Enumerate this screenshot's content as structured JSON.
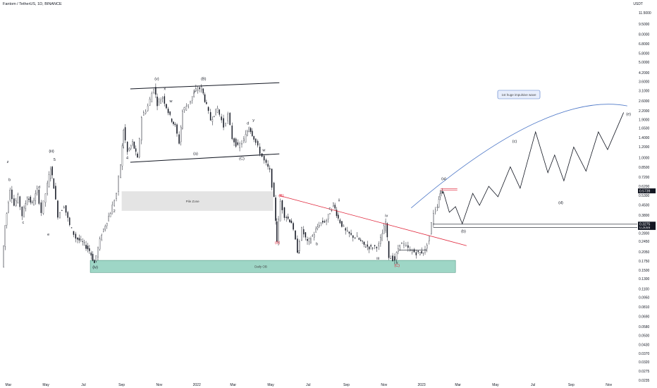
{
  "header": {
    "title": "Fantom / TetherUS, 1D, BINANCE",
    "currency": "USDT"
  },
  "colors": {
    "up": "#131722",
    "down": "#131722",
    "trend_red": "#e0263b",
    "zone_green": "#9ed6c6",
    "zone_grey": "#e4e4e4",
    "arc_blue": "#4f79c8"
  },
  "price_tags": {
    "current": "0.5739",
    "level1": "0.3099",
    "level2": "0.3275"
  },
  "annotation": {
    "text": "1st huge impulsive wave"
  },
  "zones": {
    "pile": "Pile Zone",
    "daily": "Daily OB"
  },
  "chart_data": {
    "type": "candlestick",
    "title": "Fantom / TetherUS, 1D, BINANCE",
    "y_scale": "log",
    "ylim": [
      0.022,
      13.0
    ],
    "y_ticks": [
      "11.5000",
      "9.5000",
      "8.0000",
      "6.8000",
      "5.8000",
      "5.0000",
      "4.2000",
      "3.6000",
      "3.1000",
      "2.6000",
      "2.2000",
      "1.9000",
      "1.6500",
      "1.4000",
      "1.2000",
      "1.0000",
      "0.8500",
      "0.7200",
      "0.6200",
      "0.5300",
      "0.4500",
      "0.3800",
      "0.3200",
      "0.2800",
      "0.2450",
      "0.2050",
      "0.1750",
      "0.1500",
      "0.1300",
      "0.1100",
      "0.0950",
      "0.0810",
      "0.0690",
      "0.0580",
      "0.0500",
      "0.0430",
      "0.0370",
      "0.0320",
      "0.0275",
      "0.0235"
    ],
    "x_ticks": [
      "Mar",
      "May",
      "Jul",
      "Sep",
      "Nov",
      "2022",
      "Mar",
      "May",
      "Jul",
      "Sep",
      "Nov",
      "2023",
      "Mar",
      "May",
      "Jul",
      "Sep",
      "Nov"
    ],
    "price_path": [
      [
        "2021-02-20",
        0.16
      ],
      [
        "2021-02-25",
        0.32
      ],
      [
        "2021-03-05",
        0.6
      ],
      [
        "2021-03-12",
        0.45
      ],
      [
        "2021-03-18",
        0.52
      ],
      [
        "2021-03-25",
        0.38
      ],
      [
        "2021-04-02",
        0.52
      ],
      [
        "2021-04-10",
        0.46
      ],
      [
        "2021-04-18",
        0.58
      ],
      [
        "2021-04-25",
        0.4
      ],
      [
        "2021-05-02",
        0.55
      ],
      [
        "2021-05-10",
        0.85
      ],
      [
        "2021-05-15",
        0.62
      ],
      [
        "2021-05-22",
        0.38
      ],
      [
        "2021-06-01",
        0.45
      ],
      [
        "2021-06-10",
        0.32
      ],
      [
        "2021-06-20",
        0.26
      ],
      [
        "2021-07-01",
        0.24
      ],
      [
        "2021-07-12",
        0.21
      ],
      [
        "2021-07-20",
        0.17
      ],
      [
        "2021-08-01",
        0.28
      ],
      [
        "2021-08-15",
        0.4
      ],
      [
        "2021-08-25",
        0.55
      ],
      [
        "2021-09-01",
        0.9
      ],
      [
        "2021-09-05",
        1.62
      ],
      [
        "2021-09-12",
        1.1
      ],
      [
        "2021-09-20",
        1.3
      ],
      [
        "2021-09-28",
        0.98
      ],
      [
        "2021-10-05",
        2.0
      ],
      [
        "2021-10-15",
        2.4
      ],
      [
        "2021-10-25",
        3.3
      ],
      [
        "2021-10-30",
        2.5
      ],
      [
        "2021-11-08",
        2.8
      ],
      [
        "2021-11-20",
        2.0
      ],
      [
        "2021-11-28",
        1.7
      ],
      [
        "2021-12-05",
        1.3
      ],
      [
        "2021-12-10",
        2.2
      ],
      [
        "2021-12-20",
        2.5
      ],
      [
        "2022-01-01",
        3.15
      ],
      [
        "2022-01-10",
        3.25
      ],
      [
        "2022-01-18",
        2.4
      ],
      [
        "2022-01-25",
        1.9
      ],
      [
        "2022-02-05",
        2.3
      ],
      [
        "2022-02-15",
        1.7
      ],
      [
        "2022-02-22",
        2.05
      ],
      [
        "2022-03-01",
        1.4
      ],
      [
        "2022-03-10",
        1.2
      ],
      [
        "2022-03-20",
        1.35
      ],
      [
        "2022-03-28",
        1.7
      ],
      [
        "2022-04-05",
        1.4
      ],
      [
        "2022-04-15",
        1.1
      ],
      [
        "2022-04-22",
        0.95
      ],
      [
        "2022-05-01",
        0.8
      ],
      [
        "2022-05-08",
        0.5
      ],
      [
        "2022-05-12",
        0.25
      ],
      [
        "2022-05-18",
        0.48
      ],
      [
        "2022-05-25",
        0.38
      ],
      [
        "2022-06-05",
        0.34
      ],
      [
        "2022-06-15",
        0.21
      ],
      [
        "2022-06-22",
        0.3
      ],
      [
        "2022-07-01",
        0.24
      ],
      [
        "2022-07-12",
        0.28
      ],
      [
        "2022-07-20",
        0.33
      ],
      [
        "2022-08-01",
        0.35
      ],
      [
        "2022-08-12",
        0.46
      ],
      [
        "2022-08-20",
        0.36
      ],
      [
        "2022-09-01",
        0.29
      ],
      [
        "2022-09-10",
        0.27
      ],
      [
        "2022-09-20",
        0.26
      ],
      [
        "2022-10-01",
        0.23
      ],
      [
        "2022-10-12",
        0.22
      ],
      [
        "2022-10-25",
        0.23
      ],
      [
        "2022-11-05",
        0.34
      ],
      [
        "2022-11-10",
        0.19
      ],
      [
        "2022-11-20",
        0.18
      ],
      [
        "2022-11-28",
        0.24
      ],
      [
        "2022-12-05",
        0.23
      ],
      [
        "2022-12-15",
        0.21
      ],
      [
        "2022-12-28",
        0.2
      ],
      [
        "2023-01-08",
        0.21
      ],
      [
        "2023-01-15",
        0.27
      ],
      [
        "2023-01-22",
        0.4
      ],
      [
        "2023-01-28",
        0.45
      ],
      [
        "2023-02-01",
        0.56
      ],
      [
        "2023-02-05",
        0.57
      ]
    ],
    "projection_path": [
      [
        "2023-02-05",
        0.57
      ],
      [
        "2023-02-15",
        0.4
      ],
      [
        "2023-02-25",
        0.44
      ],
      [
        "2023-03-08",
        0.33
      ],
      [
        "2023-03-25",
        0.55
      ],
      [
        "2023-04-05",
        0.45
      ],
      [
        "2023-04-20",
        0.62
      ],
      [
        "2023-05-05",
        0.52
      ],
      [
        "2023-05-25",
        0.86
      ],
      [
        "2023-06-10",
        0.6
      ],
      [
        "2023-07-05",
        1.55
      ],
      [
        "2023-07-25",
        0.78
      ],
      [
        "2023-08-05",
        1.05
      ],
      [
        "2023-08-20",
        0.68
      ],
      [
        "2023-09-05",
        1.2
      ],
      [
        "2023-09-25",
        0.8
      ],
      [
        "2023-10-15",
        1.55
      ],
      [
        "2023-10-30",
        1.15
      ],
      [
        "2023-11-25",
        2.15
      ]
    ],
    "wave_labels": [
      {
        "t": "z",
        "x": "2021-02-28",
        "y": 0.92
      },
      {
        "t": "b",
        "x": "2021-03-03",
        "y": 0.68
      },
      {
        "t": "d",
        "x": "2021-04-20",
        "y": 0.6
      },
      {
        "t": "c",
        "x": "2021-03-25",
        "y": 0.33
      },
      {
        "t": "e",
        "x": "2021-05-05",
        "y": 0.27
      },
      {
        "t": "(iii)",
        "x": "2021-05-10",
        "y": 1.1
      },
      {
        "t": "5",
        "x": "2021-05-15",
        "y": 0.95
      },
      {
        "t": "(iv)",
        "x": "2021-07-20",
        "y": 0.155
      },
      {
        "t": "(v)",
        "x": "2021-10-28",
        "y": 3.7
      },
      {
        "t": "x",
        "x": "2021-11-10",
        "y": 3.15
      },
      {
        "t": "w",
        "x": "2021-11-20",
        "y": 2.55
      },
      {
        "t": "y",
        "x": "2021-12-28",
        "y": 3.0
      },
      {
        "t": "(a)",
        "x": "2021-12-30",
        "y": 1.05
      },
      {
        "t": "(B)",
        "x": "2022-01-12",
        "y": 3.7
      },
      {
        "t": "(C)",
        "x": "2022-03-15",
        "y": 0.97
      },
      {
        "t": "d",
        "x": "2022-03-25",
        "y": 1.75
      },
      {
        "t": "y",
        "x": "2022-04-03",
        "y": 1.85
      },
      {
        "t": "w",
        "x": "2022-04-20",
        "y": 1.12
      },
      {
        "t": "4",
        "x": "2021-09-10",
        "y": 0.98
      },
      {
        "t": "2",
        "x": "2021-08-20",
        "y": 0.4
      },
      {
        "t": "(B)",
        "x": "2022-05-18",
        "y": 0.52
      },
      {
        "t": "(A)",
        "x": "2022-05-12",
        "y": 0.235
      },
      {
        "t": "5",
        "x": "2022-06-15",
        "y": 0.2
      },
      {
        "t": "b",
        "x": "2022-07-15",
        "y": 0.23
      },
      {
        "t": "ii",
        "x": "2022-08-20",
        "y": 0.48
      },
      {
        "t": "c",
        "x": "2022-08-05",
        "y": 0.42
      },
      {
        "t": "iv",
        "x": "2022-11-05",
        "y": 0.37
      },
      {
        "t": "iii",
        "x": "2022-10-22",
        "y": 0.18
      },
      {
        "t": "v",
        "x": "2022-11-22",
        "y": 0.168
      },
      {
        "t": "(C)",
        "x": "2022-11-22",
        "y": 0.16
      },
      {
        "t": "(a)",
        "x": "2023-02-06",
        "y": 0.69
      },
      {
        "t": "(b)",
        "x": "2023-03-10",
        "y": 0.285
      },
      {
        "t": "(c)",
        "x": "2023-06-01",
        "y": 1.3
      },
      {
        "t": "(d)",
        "x": "2023-08-15",
        "y": 0.46
      },
      {
        "t": "(e)",
        "x": "2023-12-03",
        "y": 2.05
      }
    ]
  }
}
